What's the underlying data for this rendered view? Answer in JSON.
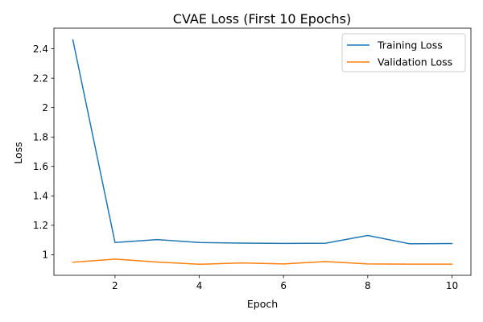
{
  "chart_data": {
    "type": "line",
    "title": "CVAE Loss (First 10 Epochs)",
    "xlabel": "Epoch",
    "ylabel": "Loss",
    "x": [
      1,
      2,
      3,
      4,
      5,
      6,
      7,
      8,
      9,
      10
    ],
    "xlim": [
      0.55,
      10.45
    ],
    "ylim": [
      0.86,
      2.54
    ],
    "xticks": [
      2,
      4,
      6,
      8,
      10
    ],
    "yticks": [
      1.0,
      1.2,
      1.4,
      1.6,
      1.8,
      2.0,
      2.2,
      2.4
    ],
    "grid": false,
    "legend_position": "top-right",
    "series": [
      {
        "name": "Training Loss",
        "color": "#1f77b4",
        "values": [
          2.46,
          1.083,
          1.103,
          1.083,
          1.079,
          1.077,
          1.078,
          1.131,
          1.074,
          1.076
        ]
      },
      {
        "name": "Validation Loss",
        "color": "#ff7f0e",
        "values": [
          0.949,
          0.97,
          0.95,
          0.935,
          0.944,
          0.937,
          0.954,
          0.937,
          0.936,
          0.936
        ]
      }
    ]
  }
}
